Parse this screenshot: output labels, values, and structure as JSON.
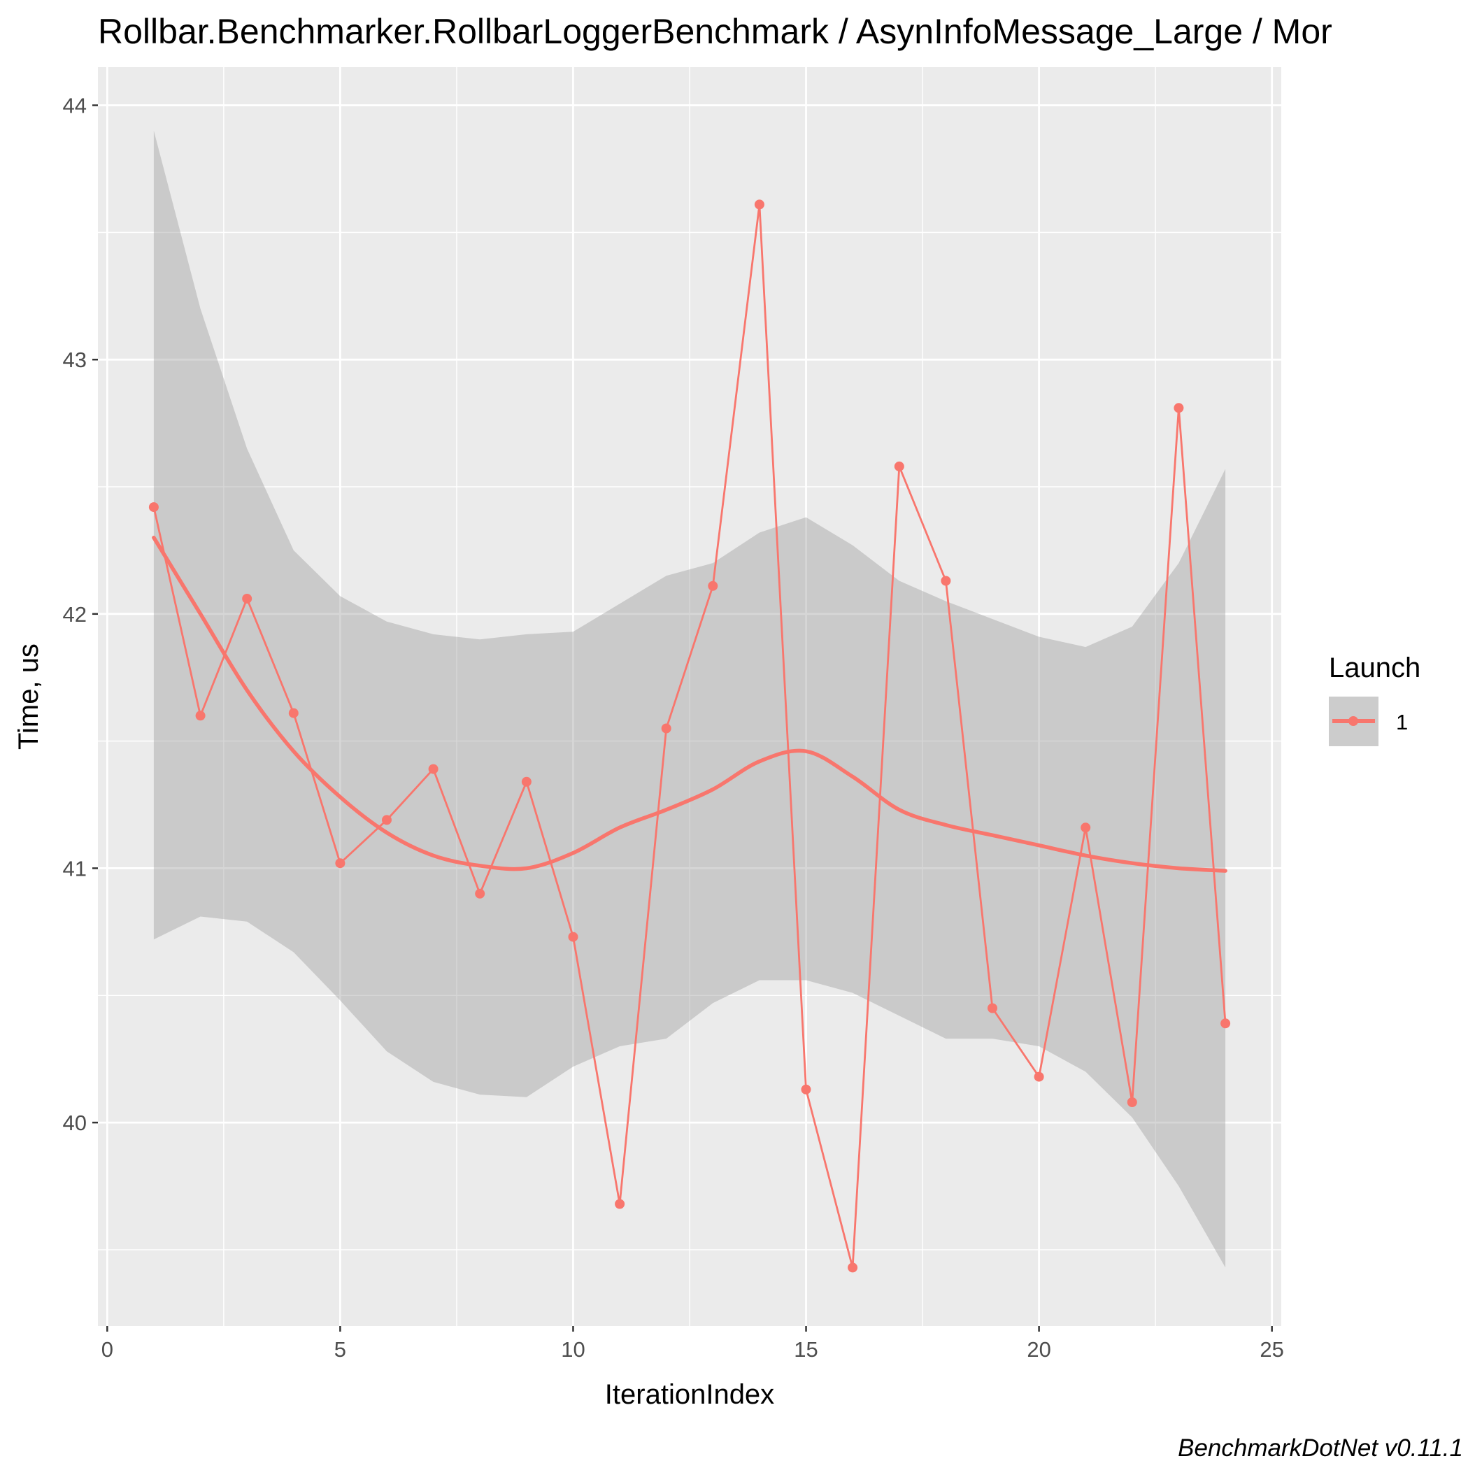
{
  "chart_data": {
    "type": "line",
    "title": "Rollbar.Benchmarker.RollbarLoggerBenchmark / AsynInfoMessage_Large / Mor",
    "xlabel": "IterationIndex",
    "ylabel": "Time, us",
    "caption": "BenchmarkDotNet v0.11.1",
    "xlim": [
      -0.2,
      25.2
    ],
    "ylim": [
      39.2,
      44.15
    ],
    "x_ticks": [
      0,
      5,
      10,
      15,
      20,
      25
    ],
    "x_tick_labels": [
      "0",
      "5",
      "10",
      "15",
      "20",
      "25"
    ],
    "y_ticks": [
      40,
      41,
      42,
      43,
      44
    ],
    "y_tick_labels": [
      "40",
      "41",
      "42",
      "43",
      "44"
    ],
    "grid": true,
    "legend": {
      "title": "Launch",
      "position": "right",
      "entries": [
        "1"
      ]
    },
    "colors": {
      "series": "#f8766d",
      "smooth": "#f8766d",
      "ribbon": "#999999",
      "panel": "#ebebeb",
      "grid": "#ffffff"
    },
    "series": [
      {
        "name": "1",
        "x": [
          1,
          2,
          3,
          4,
          5,
          6,
          7,
          8,
          9,
          10,
          11,
          12,
          13,
          14,
          15,
          16,
          17,
          18,
          19,
          20,
          21,
          22,
          23,
          24
        ],
        "values": [
          42.42,
          41.6,
          42.06,
          41.61,
          41.02,
          41.19,
          41.39,
          40.9,
          41.34,
          40.73,
          39.68,
          41.55,
          42.11,
          43.61,
          40.13,
          39.43,
          42.58,
          42.13,
          40.45,
          40.18,
          41.16,
          40.08,
          42.81,
          40.39
        ]
      }
    ],
    "smooth": {
      "x": [
        1,
        2,
        3,
        4,
        5,
        6,
        7,
        8,
        9,
        10,
        11,
        12,
        13,
        14,
        15,
        16,
        17,
        18,
        19,
        20,
        21,
        22,
        23,
        24
      ],
      "y": [
        42.3,
        42.0,
        41.7,
        41.46,
        41.28,
        41.14,
        41.05,
        41.01,
        41.0,
        41.06,
        41.16,
        41.23,
        41.31,
        41.42,
        41.46,
        41.36,
        41.23,
        41.17,
        41.13,
        41.09,
        41.05,
        41.02,
        41.0,
        40.99
      ],
      "lower": [
        40.72,
        40.81,
        40.79,
        40.67,
        40.48,
        40.28,
        40.16,
        40.11,
        40.1,
        40.22,
        40.3,
        40.33,
        40.47,
        40.56,
        40.56,
        40.51,
        40.42,
        40.33,
        40.33,
        40.3,
        40.2,
        40.02,
        39.75,
        39.43
      ],
      "upper": [
        43.9,
        43.2,
        42.65,
        42.25,
        42.07,
        41.97,
        41.92,
        41.9,
        41.92,
        41.93,
        42.04,
        42.15,
        42.2,
        42.32,
        42.38,
        42.27,
        42.13,
        42.05,
        41.98,
        41.91,
        41.87,
        41.95,
        42.2,
        42.57
      ]
    }
  }
}
